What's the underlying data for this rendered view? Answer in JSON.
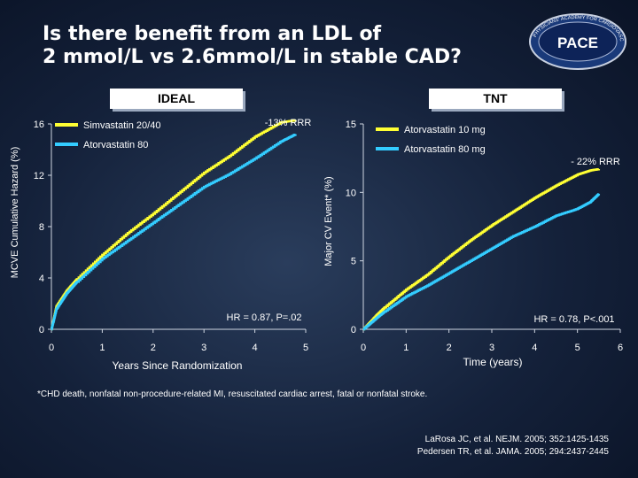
{
  "slide": {
    "title_line1": "Is there benefit from an LDL of",
    "title_line2": "2 mmol/L vs 2.6mmol/L in stable CAD?",
    "logo_text": "PACE",
    "logo_ring_text": "PHYSICIANS' ACADEMY FOR CARDIOVASCULAR EDUCATION",
    "footnote": "*CHD death, nonfatal non-procedure-related MI, resuscitated cardiac arrest, fatal or nonfatal stroke.",
    "ref_line1": "LaRosa JC, et al. NEJM. 2005; 352:1425-1435",
    "ref_line2": "Pedersen TR, et al. JAMA. 2005; 294:2437-2445"
  },
  "colors": {
    "yellow": "#ffff33",
    "blue": "#33ccff",
    "background": "#1b2a45"
  },
  "chart_data": [
    {
      "type": "line",
      "panel": "IDEAL",
      "title": "IDEAL",
      "xlabel": "Years Since Randomization",
      "ylabel": "MCVE Cumulative Hazard (%)",
      "xlim": [
        0,
        5
      ],
      "ylim": [
        0,
        16
      ],
      "x_ticks": [
        "0",
        "1",
        "2",
        "3",
        "4",
        "5"
      ],
      "y_ticks": [
        "0",
        "4",
        "8",
        "12",
        "16"
      ],
      "annotation_rrr": "-13% RRR",
      "annotation_hr": "HR = 0.87, P=.02",
      "series": [
        {
          "name": "Simvastatin 20/40",
          "color": "#ffff33",
          "x": [
            0,
            0.1,
            0.3,
            0.5,
            1,
            1.5,
            2,
            2.5,
            3,
            3.5,
            4,
            4.5,
            4.8
          ],
          "values": [
            0,
            1.8,
            3.0,
            3.9,
            5.8,
            7.5,
            9.0,
            10.6,
            12.2,
            13.5,
            15.0,
            16.1,
            16.3
          ]
        },
        {
          "name": "Atorvastatin 80",
          "color": "#33ccff",
          "x": [
            0,
            0.1,
            0.3,
            0.5,
            1,
            1.5,
            2,
            2.5,
            3,
            3.5,
            4,
            4.5,
            4.8
          ],
          "values": [
            0,
            1.6,
            2.8,
            3.7,
            5.5,
            6.9,
            8.3,
            9.7,
            11.1,
            12.1,
            13.3,
            14.6,
            15.2
          ]
        }
      ]
    },
    {
      "type": "line",
      "panel": "TNT",
      "title": "TNT",
      "xlabel": "Time (years)",
      "ylabel": "Major CV Event* (%)",
      "xlim": [
        0,
        6
      ],
      "ylim": [
        0,
        15
      ],
      "x_ticks": [
        "0",
        "1",
        "2",
        "3",
        "4",
        "5",
        "6"
      ],
      "y_ticks": [
        "0",
        "5",
        "10",
        "15"
      ],
      "annotation_rrr": "- 22% RRR",
      "annotation_hr": "HR = 0.78, P<.001",
      "series": [
        {
          "name": "Atorvastatin 10 mg",
          "color": "#ffff33",
          "x": [
            0,
            0.3,
            0.5,
            1,
            1.5,
            2,
            2.5,
            3,
            3.5,
            4,
            4.5,
            5,
            5.3,
            5.5
          ],
          "values": [
            0,
            1.0,
            1.6,
            2.9,
            4.0,
            5.3,
            6.5,
            7.6,
            8.6,
            9.6,
            10.5,
            11.3,
            11.6,
            11.7
          ]
        },
        {
          "name": "Atorvastatin 80 mg",
          "color": "#33ccff",
          "x": [
            0,
            0.3,
            0.5,
            1,
            1.5,
            2,
            2.5,
            3,
            3.5,
            4,
            4.5,
            5,
            5.3,
            5.5
          ],
          "values": [
            0,
            0.8,
            1.3,
            2.4,
            3.2,
            4.1,
            5.0,
            5.9,
            6.8,
            7.5,
            8.3,
            8.8,
            9.3,
            9.9
          ]
        }
      ]
    }
  ]
}
